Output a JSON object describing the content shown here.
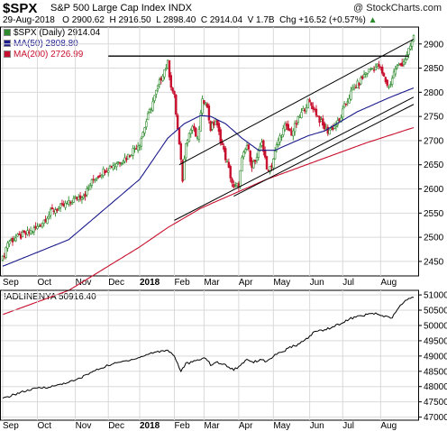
{
  "header": {
    "ticker": "$SPX",
    "description": "S&P 500 Large Cap Index",
    "exchange": "INDX",
    "watermark": "@ StockCharts.com",
    "date": "29-Aug-2018",
    "open": "O 2900.62",
    "high": "H 2916.50",
    "low": "L 2898.40",
    "close": "C 2914.04",
    "volume": "V 1.7B",
    "change": "Chg +16.52 (+0.57%)",
    "change_arrow": "▲"
  },
  "legend": {
    "price": "$SPX (Daily) 2914.04",
    "ma50": "MA(50) 2808.80",
    "ma200": "MA(200) 2726.99"
  },
  "indicator": {
    "label": "!ADLINENYA 50916.40"
  },
  "colors": {
    "candle_up": "#2e8b2e",
    "candle_down": "#c8102e",
    "ma50": "#1a1a8c",
    "ma200": "#c8102e",
    "trendline": "#000000",
    "adline": "#000000",
    "grid": "#d9d9d9"
  },
  "chart_data": [
    {
      "type": "candlestick",
      "title": "$SPX S&P 500 Large Cap Index INDX",
      "y_ticks": [
        2450,
        2500,
        2550,
        2600,
        2650,
        2700,
        2750,
        2800,
        2850,
        2900
      ],
      "ylim": [
        2420,
        2935
      ],
      "x_ticks": [
        "Sep",
        "Oct",
        "Nov",
        "Dec",
        "2018",
        "Feb",
        "Mar",
        "Apr",
        "May",
        "Jun",
        "Jul",
        "Aug"
      ],
      "x_tick_index": [
        0,
        21,
        44,
        64,
        83,
        104,
        122,
        143,
        164,
        186,
        206,
        229
      ],
      "n_bars": 250,
      "close_waypoints": [
        [
          0,
          2455
        ],
        [
          3,
          2490
        ],
        [
          8,
          2498
        ],
        [
          15,
          2508
        ],
        [
          21,
          2520
        ],
        [
          30,
          2555
        ],
        [
          40,
          2570
        ],
        [
          44,
          2580
        ],
        [
          50,
          2590
        ],
        [
          55,
          2620
        ],
        [
          62,
          2640
        ],
        [
          67,
          2650
        ],
        [
          75,
          2665
        ],
        [
          80,
          2685
        ],
        [
          83,
          2695
        ],
        [
          87,
          2740
        ],
        [
          92,
          2790
        ],
        [
          97,
          2840
        ],
        [
          100,
          2860
        ],
        [
          102,
          2815
        ],
        [
          104,
          2790
        ],
        [
          107,
          2690
        ],
        [
          109,
          2620
        ],
        [
          111,
          2700
        ],
        [
          115,
          2730
        ],
        [
          118,
          2700
        ],
        [
          121,
          2780
        ],
        [
          123,
          2785
        ],
        [
          126,
          2725
        ],
        [
          129,
          2740
        ],
        [
          133,
          2690
        ],
        [
          137,
          2640
        ],
        [
          140,
          2600
        ],
        [
          143,
          2610
        ],
        [
          145,
          2660
        ],
        [
          148,
          2690
        ],
        [
          151,
          2650
        ],
        [
          154,
          2660
        ],
        [
          157,
          2700
        ],
        [
          160,
          2640
        ],
        [
          163,
          2650
        ],
        [
          167,
          2700
        ],
        [
          171,
          2730
        ],
        [
          175,
          2715
        ],
        [
          180,
          2750
        ],
        [
          185,
          2780
        ],
        [
          188,
          2770
        ],
        [
          191,
          2750
        ],
        [
          194,
          2730
        ],
        [
          197,
          2720
        ],
        [
          201,
          2730
        ],
        [
          204,
          2740
        ],
        [
          207,
          2770
        ],
        [
          212,
          2805
        ],
        [
          216,
          2820
        ],
        [
          220,
          2840
        ],
        [
          224,
          2850
        ],
        [
          228,
          2855
        ],
        [
          231,
          2830
        ],
        [
          234,
          2810
        ],
        [
          238,
          2850
        ],
        [
          242,
          2860
        ],
        [
          245,
          2875
        ],
        [
          247,
          2895
        ],
        [
          249,
          2914
        ]
      ],
      "ma50_waypoints": [
        [
          0,
          2440
        ],
        [
          40,
          2495
        ],
        [
          83,
          2620
        ],
        [
          100,
          2705
        ],
        [
          110,
          2735
        ],
        [
          120,
          2752
        ],
        [
          126,
          2750
        ],
        [
          135,
          2735
        ],
        [
          145,
          2705
        ],
        [
          155,
          2680
        ],
        [
          165,
          2680
        ],
        [
          175,
          2695
        ],
        [
          185,
          2710
        ],
        [
          195,
          2720
        ],
        [
          205,
          2740
        ],
        [
          215,
          2760
        ],
        [
          225,
          2775
        ],
        [
          235,
          2790
        ],
        [
          249,
          2809
        ]
      ],
      "ma200_waypoints": [
        [
          0,
          2340
        ],
        [
          40,
          2390
        ],
        [
          83,
          2480
        ],
        [
          100,
          2520
        ],
        [
          120,
          2560
        ],
        [
          140,
          2590
        ],
        [
          160,
          2620
        ],
        [
          180,
          2645
        ],
        [
          200,
          2670
        ],
        [
          220,
          2695
        ],
        [
          249,
          2727
        ]
      ],
      "annotations": [
        {
          "kind": "horizontal_resistance",
          "level": 2875,
          "from_index": 64,
          "to_index": 246
        },
        {
          "kind": "channel_upper",
          "from": [
            107,
            2650
          ],
          "to": [
            249,
            2910
          ]
        },
        {
          "kind": "channel_lower",
          "from": [
            104,
            2535
          ],
          "to": [
            249,
            2790
          ]
        }
      ]
    },
    {
      "type": "line",
      "series": [
        {
          "name": "!ADLINENYA",
          "last": 50916.4
        }
      ],
      "y_ticks": [
        47000,
        47500,
        48000,
        48500,
        49000,
        49500,
        50000,
        50500,
        51000
      ],
      "ylim": [
        46900,
        51150
      ],
      "x_ticks": [
        "Sep",
        "Oct",
        "Nov",
        "Dec",
        "2018",
        "Feb",
        "Mar",
        "Apr",
        "May",
        "Jun",
        "Jul",
        "Aug"
      ],
      "waypoints": [
        [
          0,
          47600
        ],
        [
          10,
          47800
        ],
        [
          21,
          47950
        ],
        [
          30,
          48000
        ],
        [
          40,
          48150
        ],
        [
          44,
          48200
        ],
        [
          55,
          48500
        ],
        [
          64,
          48700
        ],
        [
          75,
          48850
        ],
        [
          83,
          48950
        ],
        [
          90,
          49100
        ],
        [
          100,
          49200
        ],
        [
          104,
          49000
        ],
        [
          108,
          48500
        ],
        [
          111,
          48750
        ],
        [
          115,
          48800
        ],
        [
          120,
          48900
        ],
        [
          123,
          48950
        ],
        [
          126,
          48700
        ],
        [
          130,
          48800
        ],
        [
          135,
          48700
        ],
        [
          140,
          48550
        ],
        [
          143,
          48650
        ],
        [
          148,
          48900
        ],
        [
          152,
          48800
        ],
        [
          157,
          48900
        ],
        [
          160,
          48800
        ],
        [
          164,
          49000
        ],
        [
          170,
          49150
        ],
        [
          175,
          49300
        ],
        [
          180,
          49400
        ],
        [
          185,
          49600
        ],
        [
          189,
          49800
        ],
        [
          194,
          49850
        ],
        [
          200,
          49950
        ],
        [
          206,
          50100
        ],
        [
          212,
          50250
        ],
        [
          220,
          50350
        ],
        [
          226,
          50400
        ],
        [
          230,
          50300
        ],
        [
          236,
          50250
        ],
        [
          240,
          50600
        ],
        [
          245,
          50850
        ],
        [
          249,
          50916
        ]
      ]
    }
  ]
}
